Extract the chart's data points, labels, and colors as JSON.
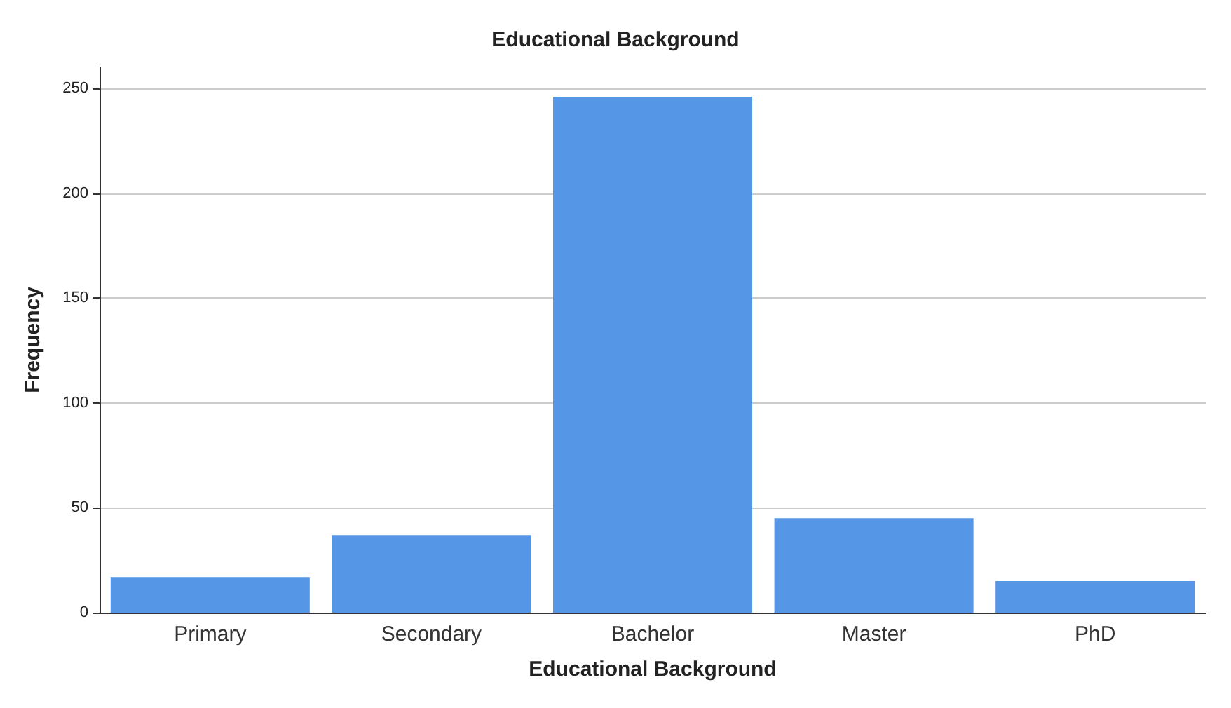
{
  "chart_data": {
    "type": "bar",
    "title": "Educational Background",
    "xlabel": "Educational Background",
    "ylabel": "Frequency",
    "categories": [
      "Primary",
      "Secondary",
      "Bachelor",
      "Master",
      "PhD"
    ],
    "values": [
      17,
      37,
      246,
      45,
      15
    ],
    "color": "#5596e6",
    "ylim": [
      0,
      260
    ],
    "yticks": [
      0,
      50,
      100,
      150,
      200,
      250
    ],
    "grid": "y"
  }
}
